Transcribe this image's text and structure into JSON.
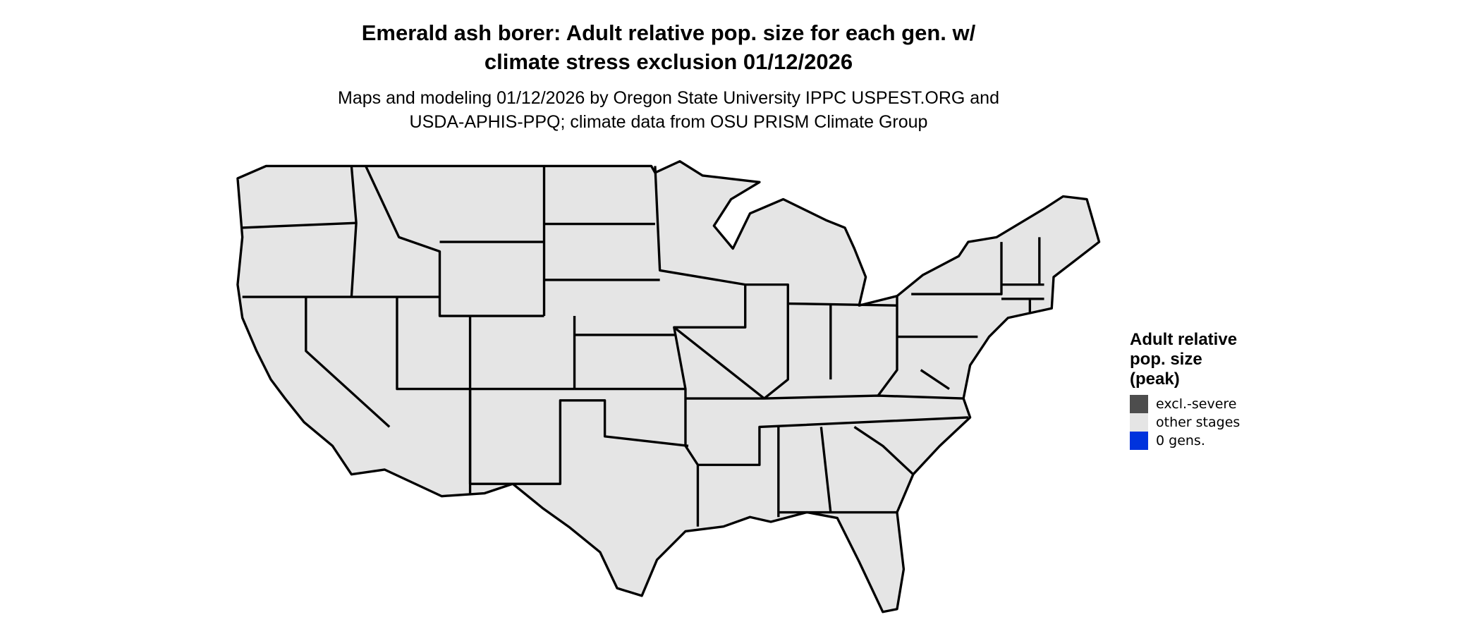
{
  "title": [
    "Emerald ash borer: Adult relative pop. size for each gen. w/",
    "climate stress exclusion 01/12/2026"
  ],
  "subtitle": [
    "Maps and modeling 01/12/2026 by Oregon State University IPPC USPEST.ORG and",
    "USDA-APHIS-PPQ; climate data from OSU PRISM Climate Group"
  ],
  "map": {
    "region": "contiguous United States",
    "fill_color": "#e5e5e5",
    "border_color": "#000000"
  },
  "legend": {
    "title": [
      "Adult relative",
      "pop. size",
      "(peak)"
    ],
    "items": [
      {
        "label": "excl.-severe",
        "color": "#4d4d4d"
      },
      {
        "label": "other stages",
        "color": "#e5e5e5"
      },
      {
        "label": "0 gens.",
        "color": "#0033dd"
      }
    ]
  }
}
